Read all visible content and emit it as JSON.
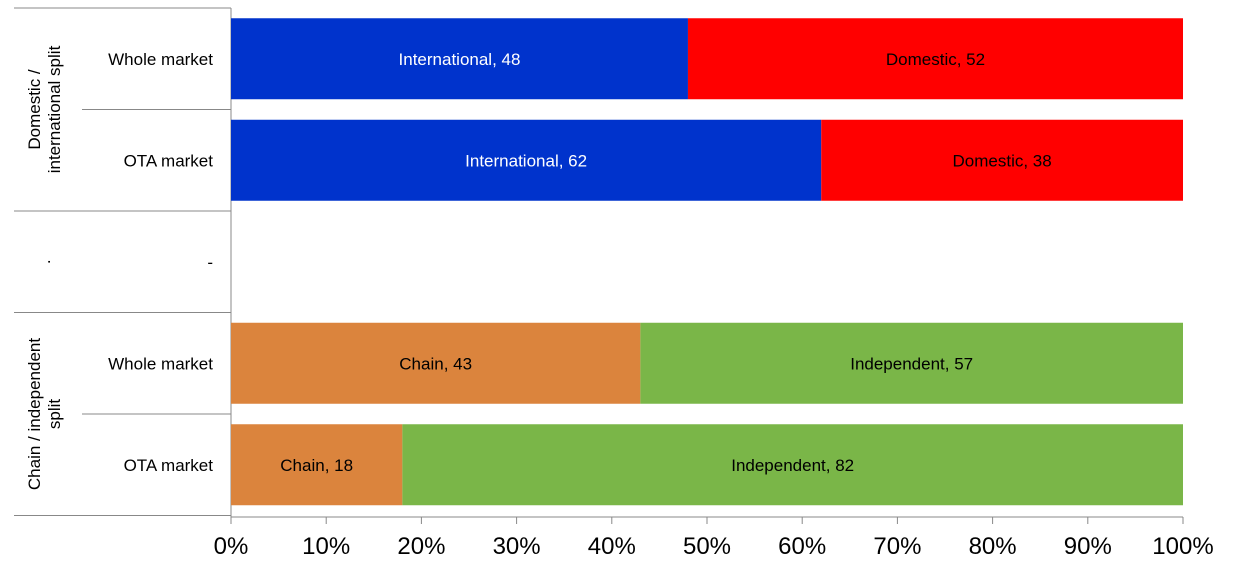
{
  "chart_data": {
    "type": "bar",
    "orientation": "horizontal",
    "stacked": true,
    "xlim": [
      0,
      100
    ],
    "x_ticks": [
      "0%",
      "10%",
      "20%",
      "30%",
      "40%",
      "50%",
      "60%",
      "70%",
      "80%",
      "90%",
      "100%"
    ],
    "grid": false,
    "legend": "none",
    "groups": [
      {
        "label": "Domestic / international split",
        "label_lines": [
          "Domestic /",
          "international split"
        ],
        "rows": [
          {
            "label": "Whole market",
            "segments": [
              {
                "name": "International",
                "value": 48,
                "color": "#0033CC",
                "text_color": "#ffffff",
                "label": "International,  48"
              },
              {
                "name": "Domestic",
                "value": 52,
                "color": "#FF0000",
                "text_color": "#000000",
                "label": "Domestic, 52"
              }
            ]
          },
          {
            "label": "OTA market",
            "segments": [
              {
                "name": "International",
                "value": 62,
                "color": "#0033CC",
                "text_color": "#ffffff",
                "label": "International,  62"
              },
              {
                "name": "Domestic",
                "value": 38,
                "color": "#FF0000",
                "text_color": "#000000",
                "label": "Domestic, 38"
              }
            ]
          }
        ]
      },
      {
        "label": ".",
        "label_lines": [
          "."
        ],
        "rows": [
          {
            "label": "-",
            "segments": []
          }
        ]
      },
      {
        "label": "Chain / independent split",
        "label_lines": [
          "Chain / independent",
          "split"
        ],
        "rows": [
          {
            "label": "Whole market",
            "segments": [
              {
                "name": "Chain",
                "value": 43,
                "color": "#DB843D",
                "text_color": "#000000",
                "label": "Chain, 43"
              },
              {
                "name": "Independent",
                "value": 57,
                "color": "#7AB648",
                "text_color": "#000000",
                "label": "Independent,  57"
              }
            ]
          },
          {
            "label": "OTA market",
            "segments": [
              {
                "name": "Chain",
                "value": 18,
                "color": "#DB843D",
                "text_color": "#000000",
                "label": "Chain, 18"
              },
              {
                "name": "Independent",
                "value": 82,
                "color": "#7AB648",
                "text_color": "#000000",
                "label": "Independent,  82"
              }
            ]
          }
        ]
      }
    ]
  }
}
